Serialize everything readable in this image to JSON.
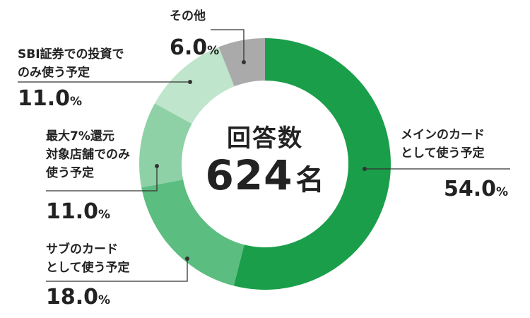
{
  "center": {
    "label": "回答数",
    "count": "624",
    "unit": "名"
  },
  "chart_data": {
    "type": "pie",
    "donut": true,
    "slices": [
      {
        "label_lines": [
          "メインのカード",
          "として使う予定"
        ],
        "value": 54.0,
        "value_text": "54.0",
        "color": "#1a9e4a"
      },
      {
        "label_lines": [
          "サブのカード",
          "として使う予定"
        ],
        "value": 18.0,
        "value_text": "18.0",
        "color": "#5cbd80"
      },
      {
        "label_lines": [
          "最大7%還元",
          "対象店舗でのみ",
          "使う予定"
        ],
        "value": 11.0,
        "value_text": "11.0",
        "color": "#8fd1a6"
      },
      {
        "label_lines": [
          "SBI証券での投資で",
          "のみ使う予定"
        ],
        "value": 11.0,
        "value_text": "11.0",
        "color": "#bfe5cc"
      },
      {
        "label_lines": [
          "その他"
        ],
        "value": 6.0,
        "value_text": "6.0",
        "color": "#aaaaaa"
      }
    ],
    "percent_suffix": "%"
  }
}
